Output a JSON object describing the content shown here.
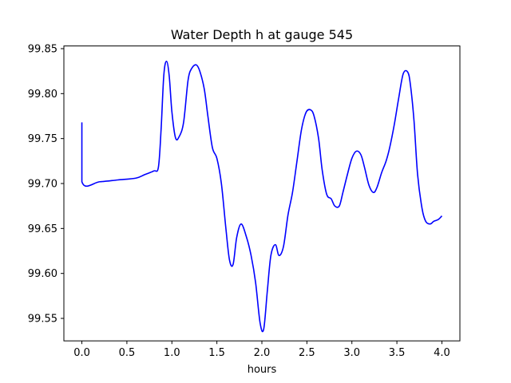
{
  "chart_data": {
    "type": "line",
    "title": "Water Depth h at gauge 545",
    "xlabel": "hours",
    "ylabel": "",
    "xlim": [
      -0.2,
      4.2
    ],
    "ylim": [
      99.525,
      99.853
    ],
    "xticks": [
      0.0,
      0.5,
      1.0,
      1.5,
      2.0,
      2.5,
      3.0,
      3.5,
      4.0
    ],
    "xtick_labels": [
      "0.0",
      "0.5",
      "1.0",
      "1.5",
      "2.0",
      "2.5",
      "3.0",
      "3.5",
      "4.0"
    ],
    "yticks": [
      99.55,
      99.6,
      99.65,
      99.7,
      99.75,
      99.8,
      99.85
    ],
    "ytick_labels": [
      "99.55",
      "99.60",
      "99.65",
      "99.70",
      "99.75",
      "99.80",
      "99.85"
    ],
    "grid": false,
    "series": [
      {
        "color": "#0000ff",
        "x": [
          0.0,
          0.0,
          0.2,
          0.4,
          0.6,
          0.7,
          0.8,
          0.85,
          0.88,
          0.91,
          0.94,
          0.97,
          1.0,
          1.04,
          1.08,
          1.13,
          1.18,
          1.22,
          1.27,
          1.31,
          1.36,
          1.4,
          1.45,
          1.5,
          1.55,
          1.6,
          1.64,
          1.68,
          1.72,
          1.77,
          1.83,
          1.88,
          1.93,
          1.98,
          2.02,
          2.06,
          2.1,
          2.15,
          2.19,
          2.24,
          2.29,
          2.34,
          2.39,
          2.44,
          2.49,
          2.54,
          2.58,
          2.63,
          2.67,
          2.72,
          2.77,
          2.81,
          2.86,
          2.9,
          2.95,
          3.0,
          3.05,
          3.1,
          3.14,
          3.19,
          3.24,
          3.28,
          3.33,
          3.38,
          3.42,
          3.47,
          3.52,
          3.57,
          3.62,
          3.65,
          3.69,
          3.73,
          3.78,
          3.82,
          3.87,
          3.91,
          3.96,
          4.0
        ],
        "y": [
          99.768,
          99.702,
          99.702,
          99.704,
          99.706,
          99.71,
          99.714,
          99.718,
          99.76,
          99.82,
          99.836,
          99.82,
          99.78,
          99.751,
          99.752,
          99.768,
          99.815,
          99.828,
          99.832,
          99.825,
          99.805,
          99.775,
          99.74,
          99.728,
          99.7,
          99.65,
          99.615,
          99.61,
          99.64,
          99.655,
          99.64,
          99.62,
          99.59,
          99.545,
          99.538,
          99.58,
          99.62,
          99.632,
          99.62,
          99.63,
          99.665,
          99.69,
          99.725,
          99.76,
          99.779,
          99.782,
          99.775,
          99.75,
          99.715,
          99.688,
          99.683,
          99.675,
          99.675,
          99.69,
          99.71,
          99.728,
          99.736,
          99.732,
          99.718,
          99.698,
          99.69,
          99.696,
          99.712,
          99.725,
          99.74,
          99.765,
          99.795,
          99.822,
          99.824,
          99.81,
          99.77,
          99.71,
          99.672,
          99.658,
          99.655,
          99.658,
          99.66,
          99.664
        ]
      }
    ]
  }
}
